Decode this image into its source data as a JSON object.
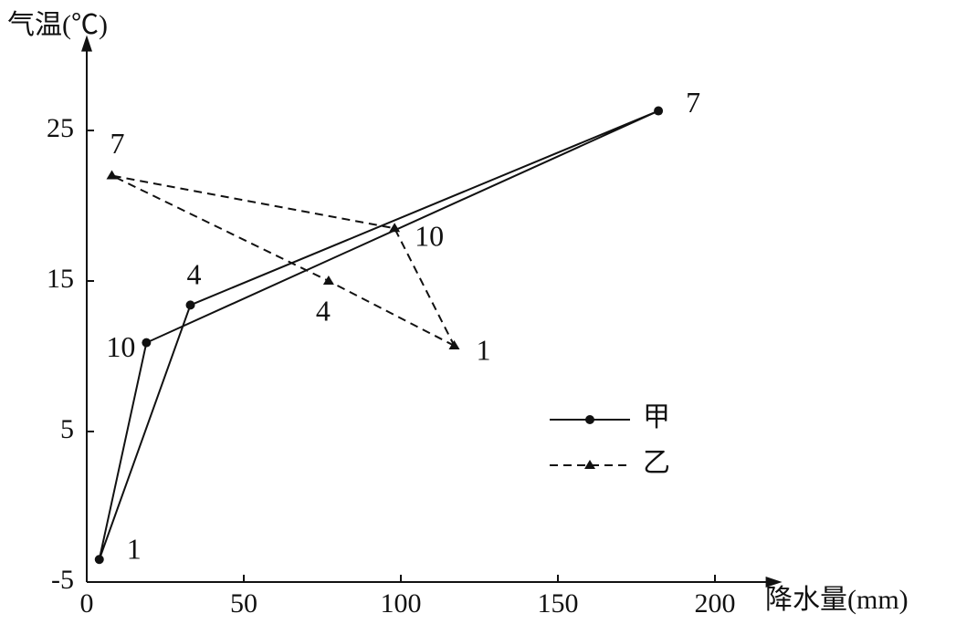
{
  "chart_data": {
    "type": "line",
    "closed": true,
    "x_label": "降水量(mm)",
    "y_label": "气温(℃)",
    "xlim": [
      0,
      215
    ],
    "ylim": [
      -5,
      30
    ],
    "xticks": [
      0,
      50,
      100,
      150,
      200
    ],
    "yticks": [
      -5,
      5,
      15,
      25
    ],
    "series": [
      {
        "name": "甲",
        "color": "#111111",
        "dash": "solid",
        "marker": "circle",
        "point_labels": [
          "1",
          "4",
          "7",
          "10"
        ],
        "x": [
          4,
          33,
          182,
          19
        ],
        "values": [
          -3.5,
          13.4,
          26.3,
          10.9
        ]
      },
      {
        "name": "乙",
        "color": "#111111",
        "dash": "dashed",
        "marker": "triangle",
        "point_labels": [
          "1",
          "4",
          "7",
          "10"
        ],
        "x": [
          117,
          77,
          8,
          98
        ],
        "values": [
          10.7,
          15,
          22,
          18.5
        ]
      }
    ]
  }
}
